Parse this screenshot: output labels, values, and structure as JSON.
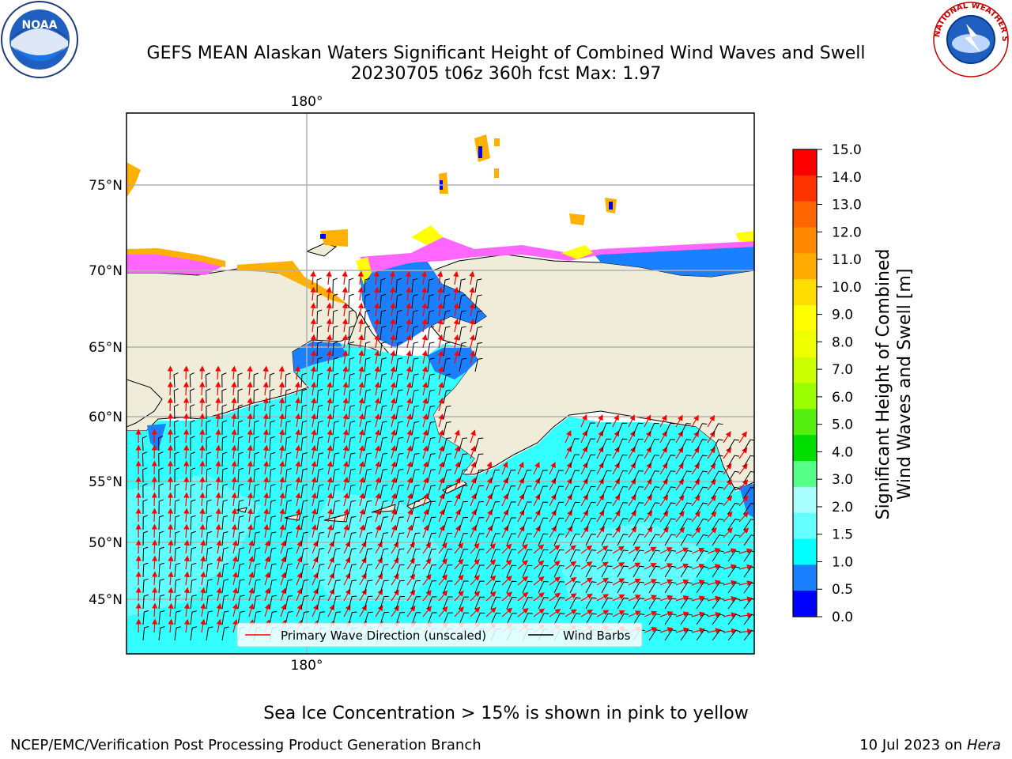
{
  "header": {
    "title_line1": "GEFS MEAN Alaskan Waters Significant Height of Combined Wind Waves and Swell",
    "title_line2": "20230705 t06z 360h fcst   Max: 1.97"
  },
  "logos": {
    "left": {
      "name": "NOAA",
      "ring_text": "NATIONAL OCEANIC AND ATMOSPHERIC ADMINISTRATION",
      "bottom_text": "U.S. DEPARTMENT OF COMMERCE"
    },
    "right": {
      "name": "NATIONAL WEATHER SERVICE"
    }
  },
  "map": {
    "longitude_labels": [
      "180°",
      "180°"
    ],
    "latitude_labels": [
      "75°N",
      "70°N",
      "65°N",
      "60°N",
      "55°N",
      "50°N",
      "45°N"
    ],
    "colors": {
      "land": "#efedda",
      "ocean_main": "#33ffff",
      "ocean_light": "#66ffff",
      "ocean_shallow": "#1a80ff",
      "sea_ice": [
        "#ff66ff",
        "#ffb000",
        "#ffff00"
      ],
      "grid": "#b0b0b0",
      "wave_arrow": "#ff0000",
      "wind_barb": "#000000"
    },
    "legend": {
      "wave_label": "Primary Wave Direction (unscaled)",
      "barb_label": "Wind Barbs"
    }
  },
  "colorbar": {
    "label_line1": "Significant Height of Combined",
    "label_line2": "Wind Waves and Swell [m]",
    "ticks": [
      "15.0",
      "14.0",
      "13.0",
      "12.0",
      "11.0",
      "10.0",
      "9.0",
      "8.0",
      "7.0",
      "6.0",
      "5.0",
      "4.0",
      "3.0",
      "2.0",
      "1.5",
      "1.0",
      "0.5",
      "0.0"
    ],
    "colors": [
      "#ff0000",
      "#ff3300",
      "#ff6600",
      "#ff8800",
      "#ffaa00",
      "#ffdd00",
      "#ffff00",
      "#eeff00",
      "#ccff00",
      "#99ff00",
      "#55ee11",
      "#00dd00",
      "#55ff88",
      "#aaffff",
      "#66ffff",
      "#00ffff",
      "#1a80ff",
      "#0000ff"
    ]
  },
  "note": "Sea Ice Concentration > 15% is shown in pink to yellow",
  "footer": {
    "left": "NCEP/EMC/Verification Post Processing Product Generation Branch",
    "right_prefix": "10 Jul 2023 on ",
    "right_host": "Hera"
  }
}
